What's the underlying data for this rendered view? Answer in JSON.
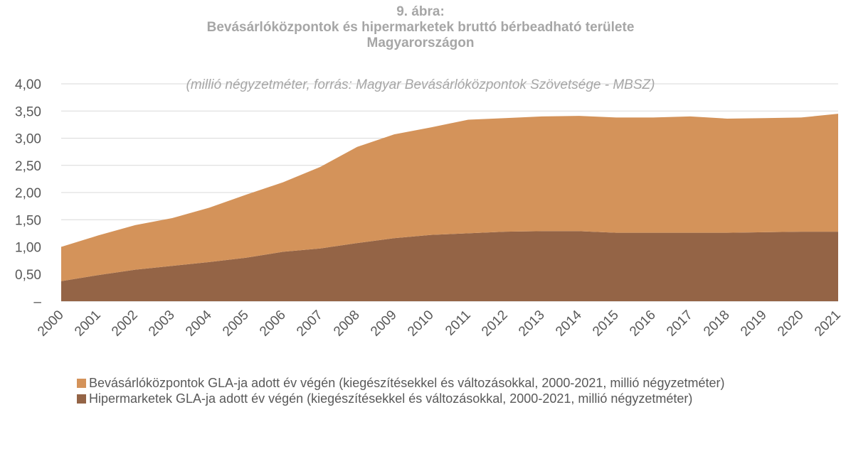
{
  "chart_data": {
    "type": "stacked_area",
    "title": [
      "9. ábra:",
      "Bevásárlóközpontok és hipermarketek bruttó bérbeadható területe",
      "Magyarországon"
    ],
    "subtitle": "(millió négyzetméter, forrás: Magyar Bevásárlóközpontok Szövetsége - MBSZ)",
    "categories": [
      "2000",
      "2001",
      "2002",
      "2003",
      "2004",
      "2005",
      "2006",
      "2007",
      "2008",
      "2009",
      "2010",
      "2011",
      "2012",
      "2013",
      "2014",
      "2015",
      "2016",
      "2017",
      "2018",
      "2019",
      "2020",
      "2021"
    ],
    "series": [
      {
        "name": "Bevásárlóközpontok GLA-ja adott év végén (kiegészítésekkel és változásokkal, 2000-2021, millió négyzetméter)",
        "color": "#d4935a",
        "values": [
          0.63,
          0.73,
          0.82,
          0.88,
          1.0,
          1.16,
          1.28,
          1.5,
          1.77,
          1.91,
          1.98,
          2.09,
          2.09,
          2.11,
          2.12,
          2.12,
          2.12,
          2.14,
          2.1,
          2.1,
          2.1,
          2.17
        ]
      },
      {
        "name": "Hipermarketek GLA-ja adott év végén (kiegészítésekkel és változásokkal, 2000-2021, millió négyzetméter)",
        "color": "#946446",
        "values": [
          0.37,
          0.48,
          0.58,
          0.65,
          0.72,
          0.8,
          0.91,
          0.97,
          1.07,
          1.16,
          1.22,
          1.25,
          1.28,
          1.29,
          1.29,
          1.26,
          1.26,
          1.26,
          1.26,
          1.27,
          1.28,
          1.28
        ]
      }
    ],
    "ylim": [
      0,
      4
    ],
    "yticks": [
      {
        "value": 0,
        "label": "–"
      },
      {
        "value": 0.5,
        "label": "0,50"
      },
      {
        "value": 1,
        "label": "1,00"
      },
      {
        "value": 1.5,
        "label": "1,50"
      },
      {
        "value": 2,
        "label": "2,00"
      },
      {
        "value": 2.5,
        "label": "2,50"
      },
      {
        "value": 3,
        "label": "3,00"
      },
      {
        "value": 3.5,
        "label": "3,50"
      },
      {
        "value": 4,
        "label": "4,00"
      }
    ],
    "grid": true
  }
}
